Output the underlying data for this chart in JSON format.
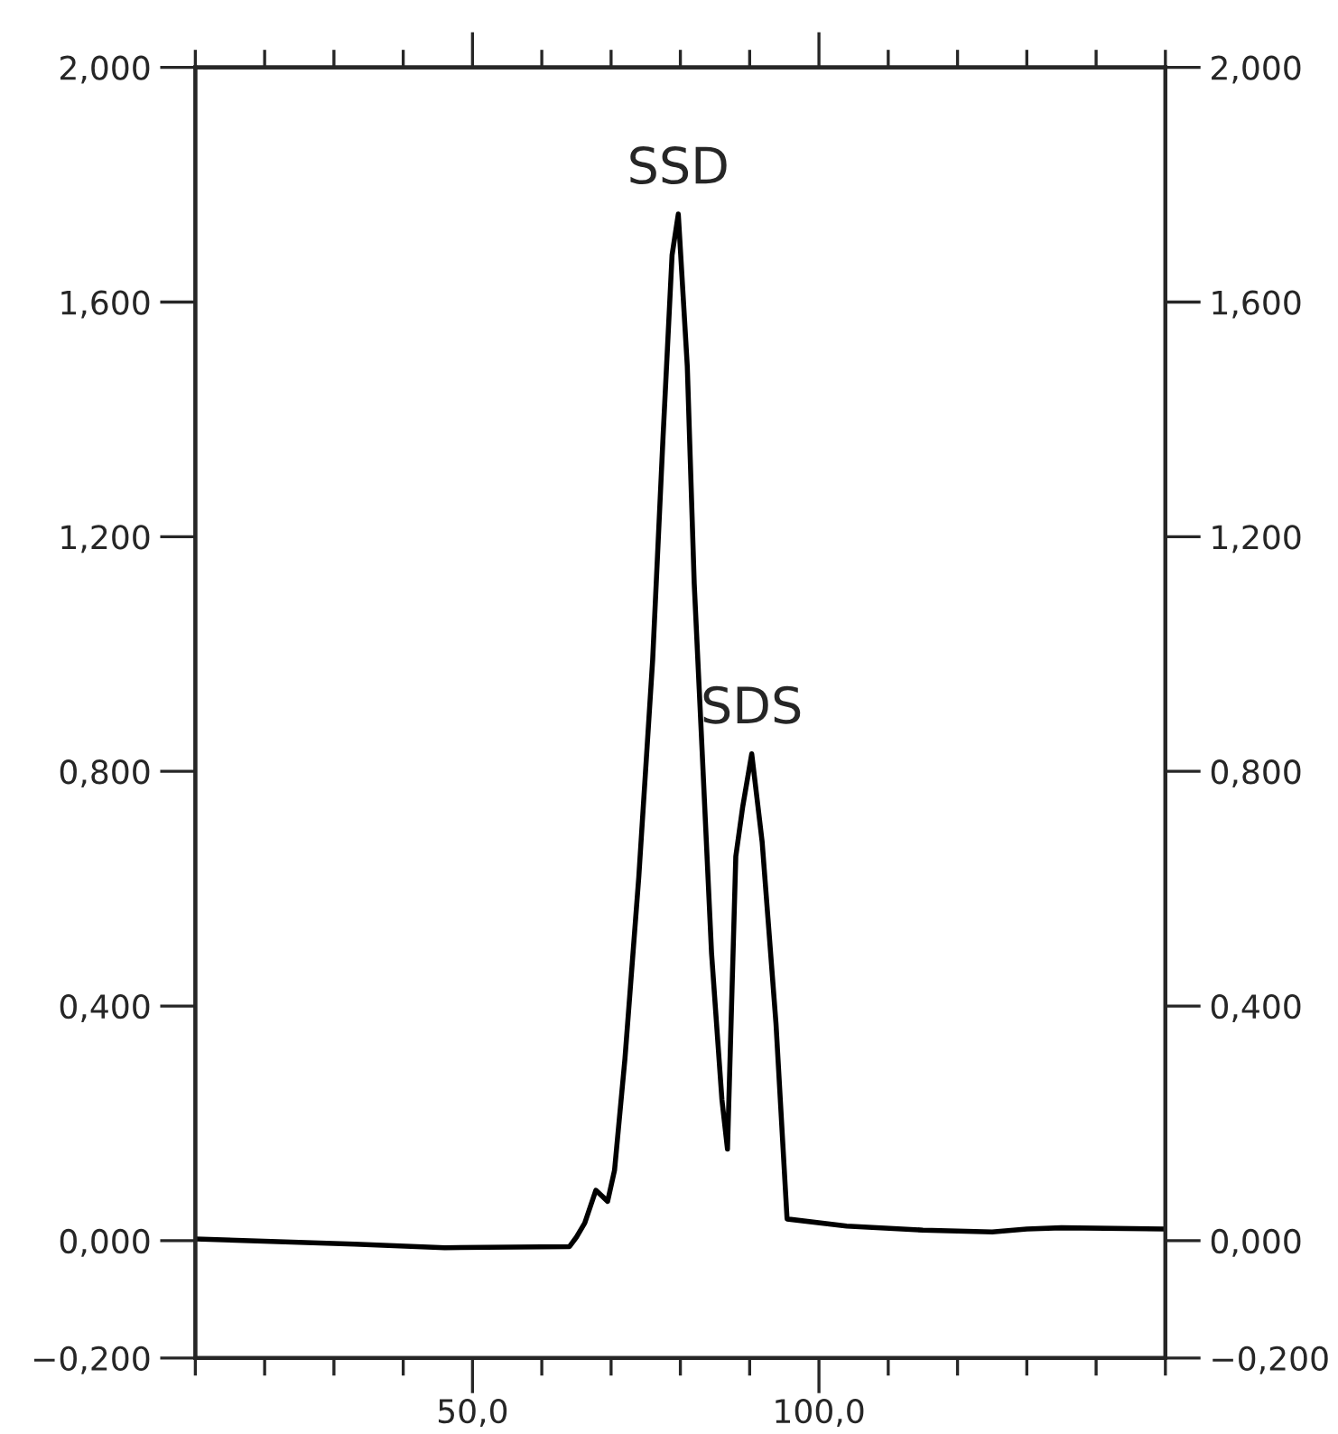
{
  "chart_data": {
    "type": "line",
    "series": [
      {
        "color": "#000000",
        "x": [
          10,
          33,
          46,
          64,
          65,
          66.2,
          67.8,
          69.5,
          70.5,
          72,
          74,
          76,
          77.5,
          78.8,
          79.7,
          81,
          82,
          83,
          84.5,
          86,
          86.8,
          88,
          89,
          90.3,
          91.8,
          93.8,
          95.4,
          104,
          115,
          125,
          130,
          135,
          150
        ],
        "values": [
          0.003,
          -0.006,
          -0.012,
          -0.01,
          0.006,
          0.03,
          0.086,
          0.067,
          0.12,
          0.31,
          0.62,
          0.99,
          1.37,
          1.68,
          1.75,
          1.49,
          1.12,
          0.87,
          0.49,
          0.24,
          0.156,
          0.655,
          0.74,
          0.83,
          0.68,
          0.37,
          0.037,
          0.025,
          0.018,
          0.015,
          0.02,
          0.022,
          0.02
        ]
      }
    ],
    "xlim": [
      10,
      150
    ],
    "xticks": [
      {
        "value": 10,
        "label": null
      },
      {
        "value": 20,
        "label": null
      },
      {
        "value": 30,
        "label": null
      },
      {
        "value": 40,
        "label": null
      },
      {
        "value": 50,
        "label": "50,0"
      },
      {
        "value": 60,
        "label": null
      },
      {
        "value": 70,
        "label": null
      },
      {
        "value": 80,
        "label": null
      },
      {
        "value": 90,
        "label": null
      },
      {
        "value": 100,
        "label": "100,0"
      },
      {
        "value": 110,
        "label": null
      },
      {
        "value": 120,
        "label": null
      },
      {
        "value": 130,
        "label": null
      },
      {
        "value": 140,
        "label": null
      },
      {
        "value": 150,
        "label": null
      }
    ],
    "ylim": [
      -0.2,
      2.0
    ],
    "yticks": [
      {
        "value": -0.2,
        "label": "−0,200"
      },
      {
        "value": 0,
        "label": "0,000"
      },
      {
        "value": 0.4,
        "label": "0,400"
      },
      {
        "value": 0.8,
        "label": "0,800"
      },
      {
        "value": 1.2,
        "label": "1,200"
      },
      {
        "value": 1.6,
        "label": "1,600"
      },
      {
        "value": 2.0,
        "label": "2,000"
      }
    ],
    "y2lim": [
      -0.2,
      2.0
    ],
    "y2ticks": [
      {
        "value": -0.2,
        "label": "−0,200"
      },
      {
        "value": 0,
        "label": "0,000"
      },
      {
        "value": 0.4,
        "label": "0,400"
      },
      {
        "value": 0.8,
        "label": "0,800"
      },
      {
        "value": 1.2,
        "label": "1,200"
      },
      {
        "value": 1.6,
        "label": "1,600"
      },
      {
        "value": 2.0,
        "label": "2,000"
      }
    ],
    "annotations": [
      {
        "text": "SSD",
        "x": 79.7,
        "y": 1.75
      },
      {
        "text": "SDS",
        "x": 90.3,
        "y": 0.83
      }
    ],
    "grid": false,
    "legend": false,
    "marker": "none",
    "line_style": "solid"
  }
}
